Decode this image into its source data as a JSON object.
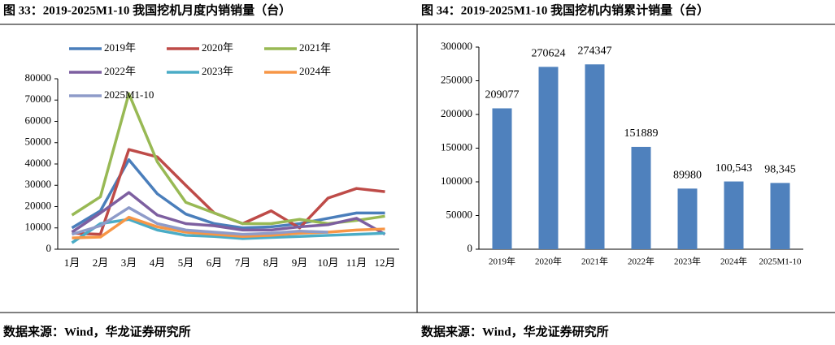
{
  "chart_data": [
    {
      "type": "line",
      "title": "图 33：2019-2025M1-10 我国挖机月度内销销量（台）",
      "source": "数据来源：Wind，华龙证券研究所",
      "categories": [
        "1月",
        "2月",
        "3月",
        "4月",
        "5月",
        "6月",
        "7月",
        "8月",
        "9月",
        "10月",
        "11月",
        "12月"
      ],
      "series": [
        {
          "name": "2019年",
          "color": "#4a7ebb",
          "values": [
            10000,
            18000,
            42000,
            26000,
            16500,
            12000,
            10000,
            10500,
            12000,
            14500,
            17000,
            17000
          ]
        },
        {
          "name": "2020年",
          "color": "#be4b48",
          "values": [
            7500,
            7000,
            46800,
            43300,
            30000,
            17000,
            12000,
            18000,
            10000,
            24000,
            28500,
            27000
          ]
        },
        {
          "name": "2021年",
          "color": "#98b954",
          "values": [
            16000,
            24600,
            73000,
            41000,
            22000,
            17000,
            12000,
            12000,
            14000,
            12000,
            13500,
            15500
          ]
        },
        {
          "name": "2022年",
          "color": "#7d5fa0",
          "values": [
            8000,
            17000,
            26600,
            16000,
            12000,
            11000,
            9000,
            9000,
            10500,
            11500,
            14500,
            7000
          ]
        },
        {
          "name": "2023年",
          "color": "#4aacc6",
          "values": [
            3000,
            12000,
            14000,
            9000,
            6500,
            6000,
            5000,
            5500,
            6000,
            6500,
            7000,
            7500
          ]
        },
        {
          "name": "2024年",
          "color": "#f79646",
          "values": [
            5300,
            5700,
            15000,
            10500,
            8000,
            7000,
            6000,
            6500,
            7500,
            8000,
            9000,
            9500
          ]
        },
        {
          "name": "2025M1-10",
          "color": "#8e9bc9",
          "values": [
            7000,
            11000,
            19500,
            12000,
            9000,
            8000,
            7000,
            7500,
            8500,
            8000,
            null,
            null
          ]
        }
      ],
      "ylim": [
        0,
        80000
      ],
      "yticks": [
        0,
        10000,
        20000,
        30000,
        40000,
        50000,
        60000,
        70000,
        80000
      ]
    },
    {
      "type": "bar",
      "title": "图 34：2019-2025M1-10 我国挖机内销累计销量（台）",
      "source": "数据来源：Wind，华龙证券研究所",
      "categories": [
        "2019年",
        "2020年",
        "2021年",
        "2022年",
        "2023年",
        "2024年",
        "2025M1-10"
      ],
      "values": [
        209077,
        270624,
        274347,
        151889,
        89980,
        100543,
        98345
      ],
      "value_labels": [
        "209077",
        "270624",
        "274347",
        "151889",
        "89980",
        "100,543",
        "98,345"
      ],
      "color": "#4f81bd",
      "ylim": [
        0,
        300000
      ],
      "yticks": [
        0,
        50000,
        100000,
        150000,
        200000,
        250000,
        300000
      ]
    }
  ]
}
